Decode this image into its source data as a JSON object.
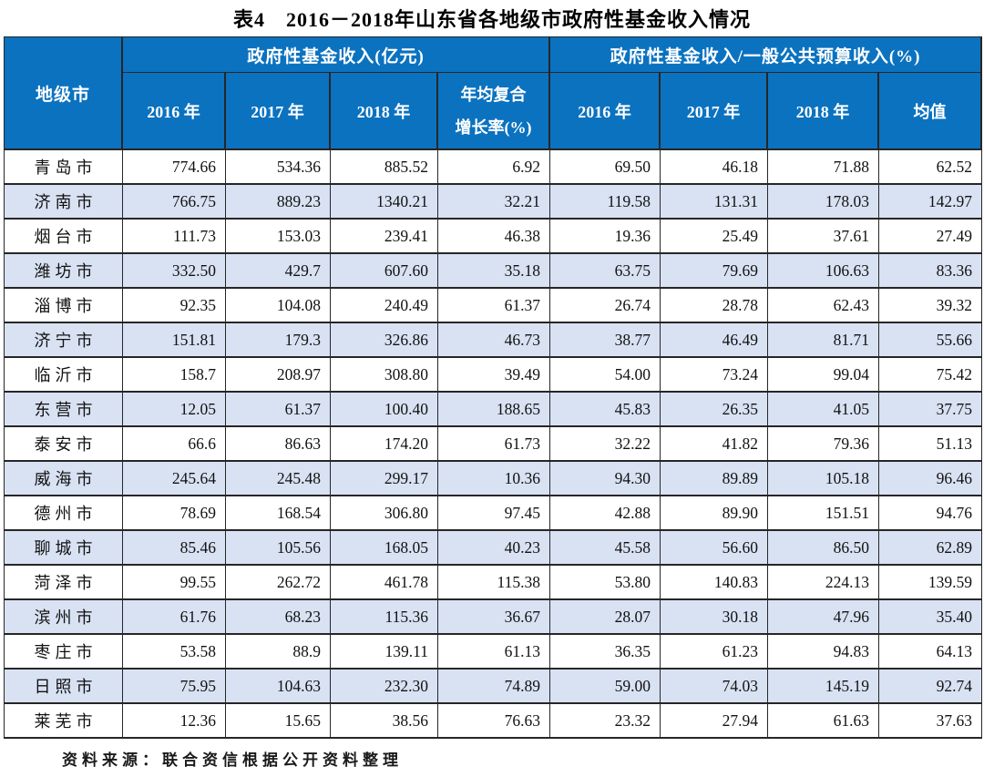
{
  "title": "表4　2016－2018年山东省各地级市政府性基金收入情况",
  "header": {
    "corner": "地级市",
    "group1": "政府性基金收入(亿元)",
    "group2": "政府性基金收入/一般公共预算收入(%)",
    "group1_years": [
      "2016 年",
      "2017 年",
      "2018 年"
    ],
    "cagr_line1": "年均复合",
    "cagr_line2": "增长率(%)",
    "group2_years": [
      "2016 年",
      "2017 年",
      "2018 年"
    ],
    "mean_label": "均值"
  },
  "rows": [
    {
      "city": "青岛市",
      "values": [
        "774.66",
        "534.36",
        "885.52",
        "6.92",
        "69.50",
        "46.18",
        "71.88",
        "62.52"
      ]
    },
    {
      "city": "济南市",
      "values": [
        "766.75",
        "889.23",
        "1340.21",
        "32.21",
        "119.58",
        "131.31",
        "178.03",
        "142.97"
      ]
    },
    {
      "city": "烟台市",
      "values": [
        "111.73",
        "153.03",
        "239.41",
        "46.38",
        "19.36",
        "25.49",
        "37.61",
        "27.49"
      ]
    },
    {
      "city": "潍坊市",
      "values": [
        "332.50",
        "429.7",
        "607.60",
        "35.18",
        "63.75",
        "79.69",
        "106.63",
        "83.36"
      ]
    },
    {
      "city": "淄博市",
      "values": [
        "92.35",
        "104.08",
        "240.49",
        "61.37",
        "26.74",
        "28.78",
        "62.43",
        "39.32"
      ]
    },
    {
      "city": "济宁市",
      "values": [
        "151.81",
        "179.3",
        "326.86",
        "46.73",
        "38.77",
        "46.49",
        "81.71",
        "55.66"
      ]
    },
    {
      "city": "临沂市",
      "values": [
        "158.7",
        "208.97",
        "308.80",
        "39.49",
        "54.00",
        "73.24",
        "99.04",
        "75.42"
      ]
    },
    {
      "city": "东营市",
      "values": [
        "12.05",
        "61.37",
        "100.40",
        "188.65",
        "45.83",
        "26.35",
        "41.05",
        "37.75"
      ]
    },
    {
      "city": "泰安市",
      "values": [
        "66.6",
        "86.63",
        "174.20",
        "61.73",
        "32.22",
        "41.82",
        "79.36",
        "51.13"
      ]
    },
    {
      "city": "威海市",
      "values": [
        "245.64",
        "245.48",
        "299.17",
        "10.36",
        "94.30",
        "89.89",
        "105.18",
        "96.46"
      ]
    },
    {
      "city": "德州市",
      "values": [
        "78.69",
        "168.54",
        "306.80",
        "97.45",
        "42.88",
        "89.90",
        "151.51",
        "94.76"
      ]
    },
    {
      "city": "聊城市",
      "values": [
        "85.46",
        "105.56",
        "168.05",
        "40.23",
        "45.58",
        "56.60",
        "86.50",
        "62.89"
      ]
    },
    {
      "city": "菏泽市",
      "values": [
        "99.55",
        "262.72",
        "461.78",
        "115.38",
        "53.80",
        "140.83",
        "224.13",
        "139.59"
      ]
    },
    {
      "city": "滨州市",
      "values": [
        "61.76",
        "68.23",
        "115.36",
        "36.67",
        "28.07",
        "30.18",
        "47.96",
        "35.40"
      ]
    },
    {
      "city": "枣庄市",
      "values": [
        "53.58",
        "88.9",
        "139.11",
        "61.13",
        "36.35",
        "61.23",
        "94.83",
        "64.13"
      ]
    },
    {
      "city": "日照市",
      "values": [
        "75.95",
        "104.63",
        "232.30",
        "74.89",
        "59.00",
        "74.03",
        "145.19",
        "92.74"
      ]
    },
    {
      "city": "莱芜市",
      "values": [
        "12.36",
        "15.65",
        "38.56",
        "76.63",
        "23.32",
        "27.94",
        "61.63",
        "37.63"
      ]
    }
  ],
  "footer": "资料来源：联合资信根据公开资料整理",
  "colors": {
    "header_bg": "#0B72C0",
    "stripe_bg": "#D9E2F3",
    "border": "#262626",
    "header_text": "#FFFFFF",
    "body_text": "#111111"
  }
}
